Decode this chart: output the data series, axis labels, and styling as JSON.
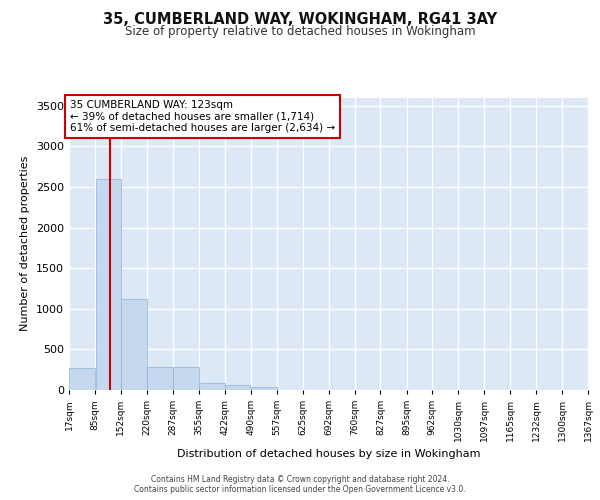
{
  "title": "35, CUMBERLAND WAY, WOKINGHAM, RG41 3AY",
  "subtitle": "Size of property relative to detached houses in Wokingham",
  "xlabel": "Distribution of detached houses by size in Wokingham",
  "ylabel": "Number of detached properties",
  "bar_color": "#c5d8ee",
  "bar_edge_color": "#8ab4d8",
  "background_color": "#dce8f5",
  "grid_color": "#ffffff",
  "property_size": 123,
  "property_line_color": "#cc0000",
  "annotation_text": "35 CUMBERLAND WAY: 123sqm\n← 39% of detached houses are smaller (1,714)\n61% of semi-detached houses are larger (2,634) →",
  "annotation_box_color": "#ffffff",
  "annotation_box_edge": "#cc0000",
  "footnote": "Contains HM Land Registry data © Crown copyright and database right 2024.\nContains public sector information licensed under the Open Government Licence v3.0.",
  "bins": [
    17,
    85,
    152,
    220,
    287,
    355,
    422,
    490,
    557,
    625,
    692,
    760,
    827,
    895,
    962,
    1030,
    1097,
    1165,
    1232,
    1300,
    1367
  ],
  "bin_labels": [
    "17sqm",
    "85sqm",
    "152sqm",
    "220sqm",
    "287sqm",
    "355sqm",
    "422sqm",
    "490sqm",
    "557sqm",
    "625sqm",
    "692sqm",
    "760sqm",
    "827sqm",
    "895sqm",
    "962sqm",
    "1030sqm",
    "1097sqm",
    "1165sqm",
    "1232sqm",
    "1300sqm",
    "1367sqm"
  ],
  "heights": [
    270,
    2600,
    1120,
    285,
    285,
    90,
    60,
    35,
    0,
    0,
    0,
    0,
    0,
    0,
    0,
    0,
    0,
    0,
    0,
    0
  ],
  "ylim": [
    0,
    3600
  ],
  "yticks": [
    0,
    500,
    1000,
    1500,
    2000,
    2500,
    3000,
    3500
  ]
}
